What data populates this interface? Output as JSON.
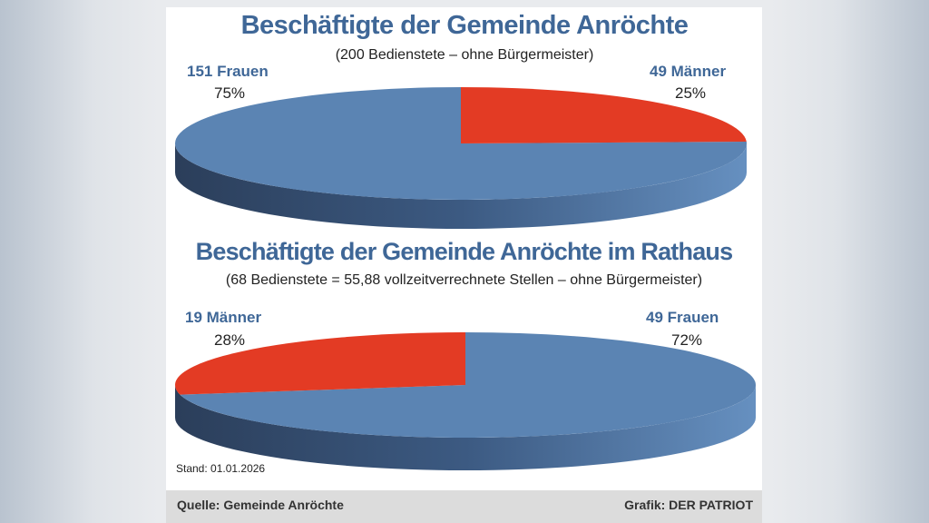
{
  "chart_data": [
    {
      "type": "pie",
      "title": "Beschäftigte der Gemeinde Anröchte",
      "subtitle": "(200 Bedienstete – ohne Bürgermeister)",
      "slices": [
        {
          "label": "151 Frauen",
          "value": 151,
          "percent": "75%",
          "color": "#5b84b3"
        },
        {
          "label": "49 Männer",
          "value": 49,
          "percent": "25%",
          "color": "#e33b24"
        }
      ]
    },
    {
      "type": "pie",
      "title": "Beschäftigte der Gemeinde Anröchte im Rathaus",
      "subtitle": "(68 Bedienstete = 55,88 vollzeitverrechnete Stellen – ohne Bürgermeister)",
      "slices": [
        {
          "label": "49 Frauen",
          "value": 49,
          "percent": "72%",
          "color": "#5b84b3"
        },
        {
          "label": "19 Männer",
          "value": 19,
          "percent": "28%",
          "color": "#e33b24"
        }
      ]
    }
  ],
  "stand": "Stand: 01.01.2026",
  "source": "Quelle: Gemeinde Anröchte",
  "credit": "Grafik: DER PATRIOT"
}
